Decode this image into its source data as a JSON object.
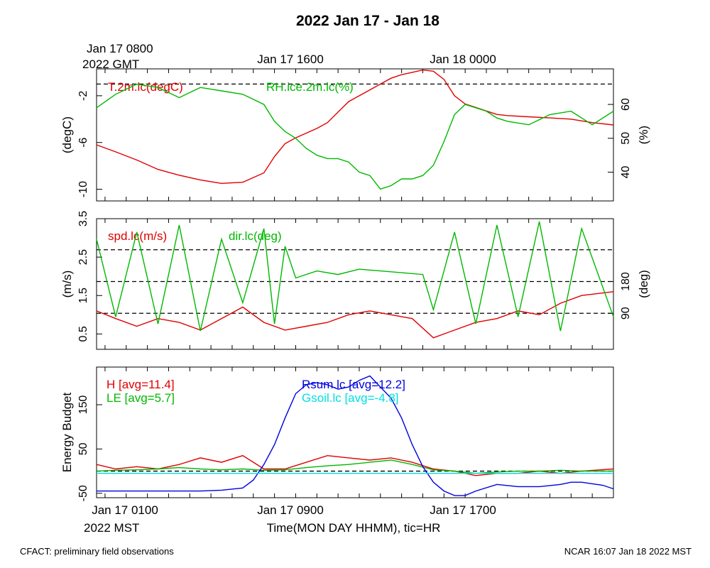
{
  "page": {
    "title": "2022 Jan 17 - Jan 18",
    "footer_left": "CFACT: preliminary field observations",
    "footer_right": "NCAR 16:07 Jan 18 2022 MST"
  },
  "top_time_axis": {
    "gmt_line1": "Jan 17 0800",
    "gmt_line2": "2022 GMT",
    "labels": [
      "Jan 17 1600",
      "Jan 18 0000"
    ]
  },
  "bottom_time_axis": {
    "labels": [
      "Jan 17 0100",
      "Jan 17 0900",
      "Jan 17 1700"
    ],
    "zone": "2022 MST",
    "xlabel": "Time(MON DAY HHMM), tic=HR"
  },
  "colors": {
    "red": "#e00000",
    "green": "#00b800",
    "blue": "#0000e0",
    "cyan": "#00e0e0",
    "black": "#000000"
  },
  "chart_data": [
    {
      "type": "line",
      "panel": "temperature-humidity",
      "x_unit": "hours since Jan 17 0000 MST",
      "xlim": [
        0.6,
        25.0
      ],
      "left_axis": {
        "label": "(degC)",
        "ylim": [
          -11,
          0.3
        ],
        "ticks": [
          -10,
          -6,
          -2
        ],
        "tick_labels": [
          "-10",
          "-6",
          "-2"
        ]
      },
      "right_axis": {
        "label": "(%)",
        "ylim": [
          31.5,
          70.5
        ],
        "ticks": [
          40,
          50,
          60
        ],
        "tick_labels": [
          "40",
          "50",
          "60"
        ]
      },
      "reference_lines": [
        {
          "axis": "left",
          "value": -1.0
        }
      ],
      "series": [
        {
          "name": "T.2m.lc(degC)",
          "axis": "left",
          "color": "red",
          "x": [
            0.6,
            1.5,
            2.5,
            3.5,
            4.5,
            5.5,
            6.5,
            7.5,
            8.5,
            9.0,
            9.5,
            10.0,
            10.5,
            11.0,
            11.5,
            12.0,
            12.5,
            13.0,
            13.5,
            14.0,
            14.5,
            15.0,
            15.5,
            16.0,
            16.5,
            17.0,
            17.5,
            18.0,
            18.5,
            19.0,
            19.5,
            20.0,
            21.0,
            22.0,
            23.0,
            24.0,
            25.0
          ],
          "y": [
            -6.2,
            -6.8,
            -7.5,
            -8.3,
            -8.8,
            -9.2,
            -9.5,
            -9.4,
            -8.6,
            -7.2,
            -6.1,
            -5.6,
            -5.2,
            -4.8,
            -4.3,
            -3.4,
            -2.5,
            -2.0,
            -1.5,
            -1.0,
            -0.5,
            -0.2,
            0.0,
            0.2,
            0.1,
            -0.6,
            -2.0,
            -2.7,
            -3.0,
            -3.3,
            -3.6,
            -3.7,
            -3.8,
            -3.9,
            -4.0,
            -4.3,
            -4.5
          ]
        },
        {
          "name": "RH.ice.2m.lc(%)",
          "axis": "right",
          "color": "green",
          "x": [
            0.6,
            1.5,
            2.5,
            3.5,
            4.5,
            5.5,
            6.5,
            7.5,
            8.5,
            9.0,
            9.5,
            10.0,
            10.5,
            11.0,
            11.5,
            12.0,
            12.5,
            13.0,
            13.5,
            14.0,
            14.5,
            15.0,
            15.5,
            16.0,
            16.5,
            17.0,
            17.5,
            18.0,
            18.5,
            19.0,
            19.5,
            20.0,
            21.0,
            22.0,
            23.0,
            24.0,
            25.0
          ],
          "y": [
            59,
            63,
            66,
            65,
            62,
            65,
            64,
            63,
            60,
            55,
            52,
            50,
            47,
            45,
            44,
            44,
            43,
            40,
            39,
            35,
            36,
            38,
            38,
            39,
            42,
            49,
            57,
            60,
            59,
            58,
            56,
            55,
            54,
            57,
            58,
            54,
            58
          ]
        }
      ],
      "legend_placement": "top-left"
    },
    {
      "type": "line",
      "panel": "wind",
      "x_unit": "hours since Jan 17 0000 MST",
      "xlim": [
        0.6,
        25.0
      ],
      "left_axis": {
        "label": "(m/s)",
        "ylim": [
          0.1,
          3.5
        ],
        "ticks": [
          0.5,
          1.5,
          2.5,
          3.5
        ],
        "tick_labels": [
          "0.5",
          "1.5",
          "2.5",
          "3.5"
        ]
      },
      "right_axis": {
        "label": "(deg)",
        "ylim": [
          -12,
          358
        ],
        "ticks": [
          90,
          180
        ],
        "tick_labels": [
          "90",
          "180"
        ]
      },
      "reference_lines": [
        {
          "axis": "right",
          "value": 90
        },
        {
          "axis": "right",
          "value": 180
        },
        {
          "axis": "right",
          "value": 270
        }
      ],
      "series": [
        {
          "name": "spd.lc(m/s)",
          "axis": "left",
          "color": "red",
          "x": [
            0.6,
            1.5,
            2.5,
            3.5,
            4.5,
            5.5,
            6.5,
            7.5,
            8.5,
            9.5,
            10.5,
            11.5,
            12.5,
            13.5,
            14.5,
            15.5,
            16.5,
            17.5,
            18.5,
            19.5,
            20.5,
            21.5,
            22.5,
            23.5,
            25.0
          ],
          "y": [
            1.1,
            0.9,
            0.7,
            0.9,
            0.8,
            0.6,
            0.9,
            1.2,
            0.8,
            0.6,
            0.7,
            0.8,
            1.0,
            1.1,
            1.0,
            0.9,
            0.4,
            0.6,
            0.8,
            0.9,
            1.1,
            1.0,
            1.3,
            1.5,
            1.6
          ]
        },
        {
          "name": "dir.lc(deg)",
          "axis": "right",
          "color": "green",
          "x": [
            0.6,
            1.5,
            2.5,
            3.5,
            4.5,
            5.5,
            6.5,
            7.5,
            8.5,
            9.0,
            9.5,
            10.0,
            11.0,
            12.0,
            13.0,
            14.0,
            15.0,
            16.0,
            16.5,
            17.5,
            18.5,
            19.5,
            20.5,
            21.5,
            22.5,
            23.5,
            25.0
          ],
          "y": [
            300,
            80,
            320,
            60,
            340,
            40,
            300,
            120,
            330,
            60,
            280,
            190,
            210,
            200,
            215,
            210,
            205,
            200,
            100,
            320,
            60,
            340,
            80,
            350,
            40,
            330,
            80
          ]
        }
      ],
      "legend_placement": "top-left"
    },
    {
      "type": "line",
      "panel": "energy-budget",
      "x_unit": "hours since Jan 17 0000 MST",
      "xlim": [
        0.6,
        25.0
      ],
      "left_axis": {
        "label": "Energy Budget",
        "ylim": [
          -60,
          235
        ],
        "ticks": [
          -50,
          50,
          150
        ],
        "tick_labels": [
          "-50",
          "50",
          "150"
        ]
      },
      "reference_lines": [
        {
          "axis": "left",
          "value": 0
        }
      ],
      "series": [
        {
          "name": "H [avg=11.4]",
          "color": "red",
          "x": [
            0.6,
            1.5,
            2.5,
            3.5,
            4.5,
            5.5,
            6.5,
            7.5,
            8.5,
            9.5,
            10.5,
            11.5,
            12.5,
            13.5,
            14.5,
            15.5,
            16.5,
            17.5,
            18.5,
            19.5,
            20.5,
            21.5,
            22.5,
            23.5,
            25.0
          ],
          "y": [
            15,
            5,
            10,
            5,
            15,
            30,
            20,
            35,
            5,
            5,
            20,
            35,
            30,
            25,
            30,
            20,
            5,
            0,
            -10,
            -5,
            -5,
            0,
            -5,
            0,
            5
          ]
        },
        {
          "name": "LE [avg=5.7]",
          "color": "green",
          "x": [
            0.6,
            1.5,
            2.5,
            3.5,
            4.5,
            5.5,
            6.5,
            7.5,
            8.5,
            9.5,
            10.5,
            11.5,
            12.5,
            13.5,
            14.5,
            15.5,
            16.5,
            17.5,
            18.5,
            19.5,
            20.5,
            21.5,
            22.5,
            23.5,
            25.0
          ],
          "y": [
            0,
            2,
            3,
            5,
            8,
            5,
            3,
            5,
            2,
            3,
            8,
            12,
            15,
            20,
            25,
            15,
            3,
            0,
            -5,
            -2,
            0,
            0,
            2,
            0,
            0
          ]
        },
        {
          "name": "Rsum.lc [avg=12.2]",
          "color": "blue",
          "x": [
            0.6,
            1.5,
            2.5,
            3.5,
            4.5,
            5.5,
            6.5,
            7.5,
            8.0,
            8.5,
            9.0,
            9.5,
            10.0,
            10.5,
            11.0,
            11.5,
            12.0,
            12.5,
            13.0,
            13.5,
            14.0,
            14.5,
            15.0,
            15.5,
            16.0,
            16.5,
            17.0,
            17.5,
            18.0,
            18.5,
            19.5,
            20.5,
            21.5,
            22.5,
            23.0,
            23.5,
            24.5,
            25.0
          ],
          "y": [
            -45,
            -45,
            -45,
            -45,
            -45,
            -45,
            -43,
            -38,
            -20,
            15,
            60,
            120,
            175,
            195,
            200,
            195,
            185,
            190,
            205,
            215,
            190,
            165,
            120,
            60,
            10,
            -25,
            -45,
            -55,
            -55,
            -45,
            -30,
            -35,
            -35,
            -30,
            -25,
            -25,
            -32,
            -40
          ]
        },
        {
          "name": "Gsoil.lc [avg=-4.8]",
          "color": "cyan",
          "x": [
            0.6,
            25.0
          ],
          "y": [
            -5,
            -5
          ]
        }
      ],
      "legend_placement": "top-left"
    }
  ]
}
